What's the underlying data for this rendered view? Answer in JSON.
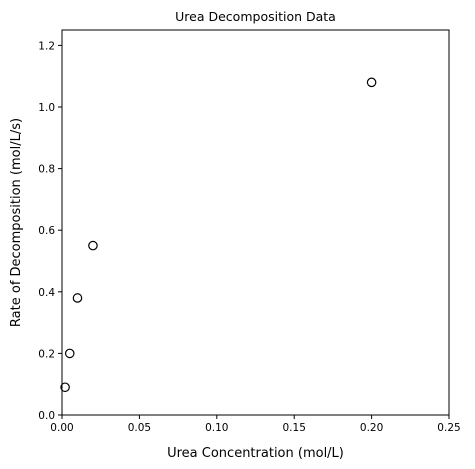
{
  "chart_data": {
    "type": "scatter",
    "title": "Urea Decomposition Data",
    "xlabel": "Urea Concentration (mol/L)",
    "ylabel": "Rate of Decomposition (mol/L/s)",
    "xlim": [
      0,
      0.25
    ],
    "ylim": [
      0,
      1.25
    ],
    "xticks": [
      "0.00",
      "0.05",
      "0.10",
      "0.15",
      "0.20",
      "0.25"
    ],
    "yticks": [
      "0.0",
      "0.2",
      "0.4",
      "0.6",
      "0.8",
      "1.0",
      "1.2"
    ],
    "xtick_values": [
      0,
      0.05,
      0.1,
      0.15,
      0.2,
      0.25
    ],
    "ytick_values": [
      0,
      0.2,
      0.4,
      0.6,
      0.8,
      1.0,
      1.2
    ],
    "grid": false,
    "marker": "open-circle",
    "marker_color": "#000000",
    "series": [
      {
        "x": [
          0.002,
          0.005,
          0.01,
          0.02,
          0.2
        ],
        "y": [
          0.09,
          0.2,
          0.38,
          0.55,
          1.08
        ]
      }
    ]
  }
}
